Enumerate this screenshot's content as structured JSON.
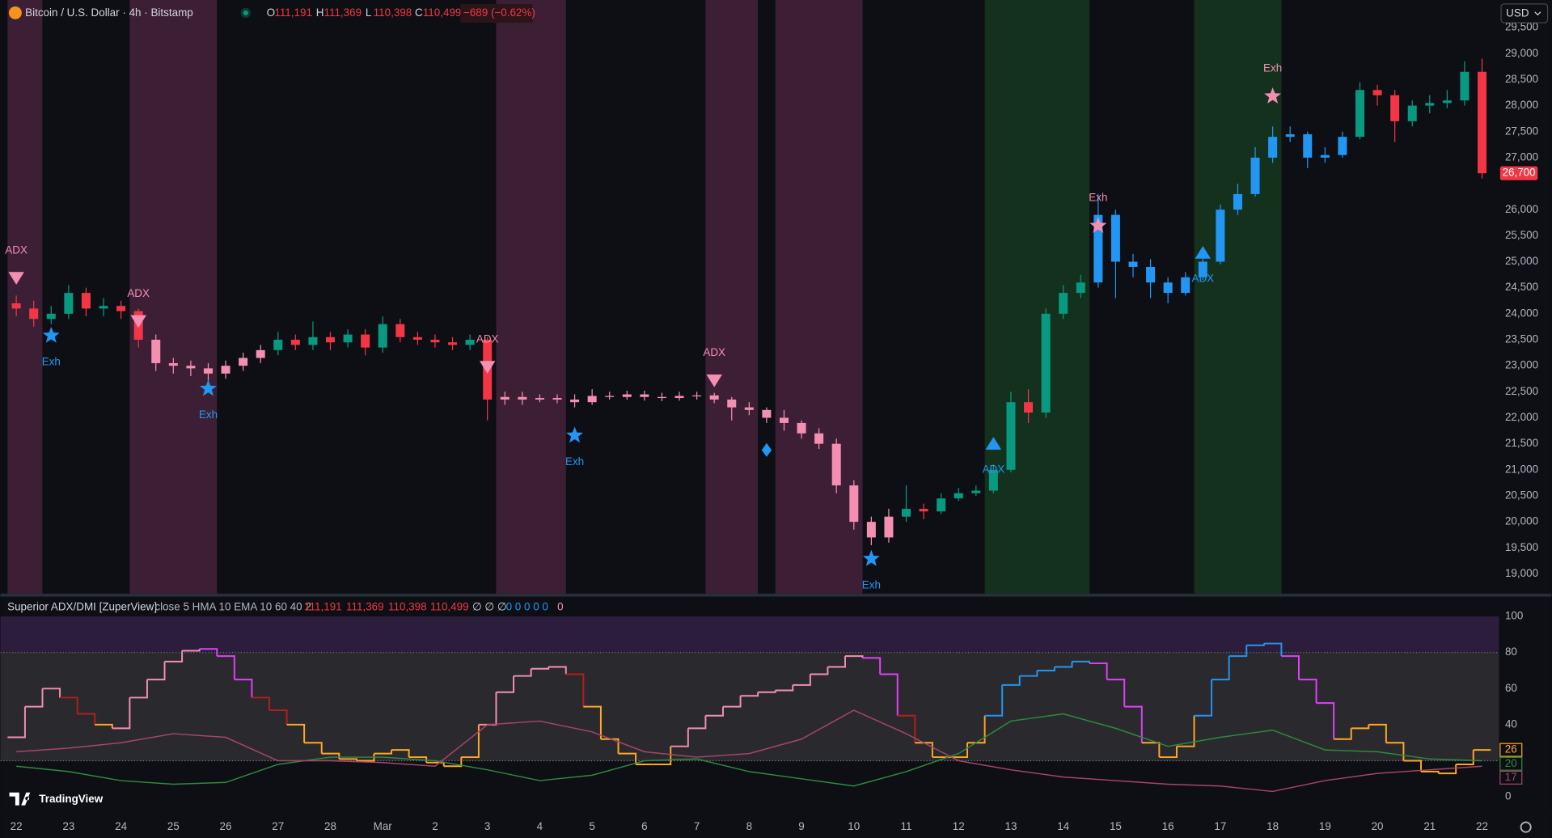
{
  "header": {
    "symbol": "Bitcoin / U.S. Dollar · 4h · Bitstamp",
    "ohlc": [
      {
        "key": "O",
        "value": "111,191"
      },
      {
        "key": "H",
        "value": "111,369"
      },
      {
        "key": "L",
        "value": "110,398"
      },
      {
        "key": "C",
        "value": "110,499"
      }
    ],
    "change": "−689 (−0.62%)",
    "currency": "USD",
    "brand": "TradingView"
  },
  "chart_data": [
    {
      "type": "candlestick",
      "open": [
        24200,
        24100,
        23900,
        24000,
        24400,
        24100,
        24150,
        24050,
        23500,
        23050,
        23000,
        22950,
        22850,
        23000,
        23150,
        23300,
        23500,
        23400,
        23550,
        23450,
        23600,
        23350,
        23800,
        23550,
        23500,
        23450,
        23400,
        23500,
        22350,
        22400,
        22350,
        22380,
        22350,
        22300,
        22420,
        22400,
        22450,
        22400,
        22380,
        22420,
        22430,
        22350,
        22200,
        22150,
        22000,
        21900,
        21700,
        21500,
        20700,
        20000,
        19700,
        20100,
        20250,
        20200,
        20450,
        20550,
        20600,
        21000,
        22300,
        22100,
        24000,
        24400,
        24600,
        25900,
        25000,
        24900,
        24600,
        24400,
        24700,
        25000,
        26000,
        26300,
        27000,
        27400,
        27450,
        27000,
        27050,
        27400,
        28300,
        28200,
        27700,
        28000,
        28050,
        28100,
        28650
      ],
      "high": [
        24350,
        24250,
        24150,
        24550,
        24500,
        24300,
        24250,
        24100,
        23600,
        23150,
        23100,
        23050,
        23100,
        23250,
        23400,
        23650,
        23600,
        23850,
        23650,
        23700,
        23700,
        23950,
        23900,
        23650,
        23600,
        23550,
        23600,
        23550,
        22500,
        22500,
        22450,
        22450,
        22450,
        22550,
        22500,
        22520,
        22520,
        22480,
        22500,
        22500,
        22480,
        22400,
        22300,
        22200,
        22150,
        21950,
        21800,
        21600,
        20800,
        20100,
        20250,
        20700,
        20350,
        20550,
        20650,
        20700,
        21100,
        22500,
        22550,
        24100,
        24550,
        24750,
        26300,
        26000,
        25150,
        25050,
        24700,
        24800,
        25150,
        26100,
        26500,
        27200,
        27600,
        27600,
        27500,
        27200,
        27500,
        28450,
        28400,
        28300,
        28100,
        28200,
        28300,
        28850,
        28900
      ],
      "low": [
        23950,
        23750,
        23800,
        23900,
        23950,
        23950,
        23900,
        23350,
        22900,
        22850,
        22800,
        22700,
        22750,
        22900,
        23050,
        23200,
        23300,
        23300,
        23300,
        23350,
        23200,
        23250,
        23450,
        23400,
        23350,
        23300,
        23300,
        21950,
        22250,
        22250,
        22300,
        22280,
        22200,
        22250,
        22350,
        22350,
        22330,
        22320,
        22330,
        22350,
        22280,
        21950,
        22050,
        21900,
        21750,
        21600,
        21400,
        20550,
        19850,
        19550,
        19600,
        20000,
        20050,
        20150,
        20400,
        20500,
        20550,
        20950,
        21900,
        22000,
        23900,
        24300,
        24500,
        24300,
        24700,
        24300,
        24200,
        24350,
        24650,
        24950,
        25900,
        26250,
        26900,
        27300,
        26800,
        26900,
        27000,
        27350,
        28000,
        27300,
        27600,
        27850,
        27950,
        28000,
        26600
      ],
      "close": [
        24100,
        23900,
        24000,
        24400,
        24100,
        24150,
        24050,
        23500,
        23050,
        23000,
        22950,
        22850,
        23000,
        23150,
        23300,
        23500,
        23400,
        23550,
        23450,
        23600,
        23350,
        23800,
        23550,
        23500,
        23450,
        23400,
        23500,
        22350,
        22400,
        22350,
        22380,
        22350,
        22300,
        22420,
        22400,
        22450,
        22400,
        22380,
        22420,
        22430,
        22350,
        22200,
        22150,
        22000,
        21900,
        21700,
        21500,
        20700,
        20000,
        19700,
        20100,
        20250,
        20200,
        20450,
        20550,
        20600,
        21000,
        22300,
        22100,
        24000,
        24400,
        24600,
        25900,
        25000,
        24900,
        24600,
        24400,
        24700,
        25000,
        26000,
        26300,
        27000,
        27400,
        27450,
        27000,
        27050,
        27400,
        28300,
        28200,
        27700,
        28000,
        28050,
        28100,
        28650,
        26700
      ],
      "last_price_label": "26,700",
      "up_color": "#089981",
      "down_color": "#f23645",
      "bear_color": "#f48fb1",
      "bull_color": "#2196f3",
      "regimes": [
        {
          "from": 8,
          "to": 14,
          "color": "#f48fb1"
        },
        {
          "from": 28,
          "to": 50,
          "color": "#f48fb1"
        },
        {
          "from": 62,
          "to": 76,
          "color": "#2196f3"
        }
      ],
      "bands": [
        {
          "from": 0,
          "to": 1,
          "color": "#3d1f35"
        },
        {
          "from": 7,
          "to": 11,
          "color": "#3d1f35"
        },
        {
          "from": 28,
          "to": 31,
          "color": "#3d1f35"
        },
        {
          "from": 40,
          "to": 42,
          "color": "#3d1f35"
        },
        {
          "from": 44,
          "to": 48,
          "color": "#3d1f35"
        },
        {
          "from": 56,
          "to": 61,
          "color": "#14311d"
        },
        {
          "from": 68,
          "to": 72,
          "color": "#14311d"
        }
      ],
      "markers": [
        {
          "index": 0,
          "price": 24680,
          "shape": "triangle-down",
          "color": "#f48fb1",
          "label": "ADX"
        },
        {
          "index": 2,
          "price": 23580,
          "shape": "star",
          "color": "#2196f3",
          "label": "Exh"
        },
        {
          "index": 7,
          "price": 23850,
          "shape": "triangle-down",
          "color": "#f48fb1",
          "label": "ADX"
        },
        {
          "index": 11,
          "price": 22560,
          "shape": "star",
          "color": "#2196f3",
          "label": "Exh"
        },
        {
          "index": 27,
          "price": 22970,
          "shape": "triangle-down",
          "color": "#f48fb1",
          "label": "ADX"
        },
        {
          "index": 32,
          "price": 21660,
          "shape": "star",
          "color": "#2196f3",
          "label": "Exh"
        },
        {
          "index": 40,
          "price": 22710,
          "shape": "triangle-down",
          "color": "#f48fb1",
          "label": "ADX"
        },
        {
          "index": 43,
          "price": 21380,
          "shape": "diamond",
          "color": "#2196f3"
        },
        {
          "index": 49,
          "price": 19290,
          "shape": "star",
          "color": "#2196f3",
          "label": "Exh"
        },
        {
          "index": 56,
          "price": 21510,
          "shape": "triangle-up",
          "color": "#2196f3",
          "label": "ADX"
        },
        {
          "index": 62,
          "price": 25690,
          "shape": "star",
          "color": "#f48fb1",
          "label": "Exh"
        },
        {
          "index": 68,
          "price": 25180,
          "shape": "triangle-up",
          "color": "#2196f3",
          "label": "ADX"
        },
        {
          "index": 72,
          "price": 28180,
          "shape": "star",
          "color": "#f48fb1",
          "label": "Exh"
        }
      ],
      "ylim": [
        18620,
        30030
      ],
      "yticks": [
        {
          "value": 19000,
          "label": "19,000"
        },
        {
          "value": 19500,
          "label": "19,500"
        },
        {
          "value": 20000,
          "label": "20,000"
        },
        {
          "value": 20500,
          "label": "20,500"
        },
        {
          "value": 21000,
          "label": "21,000"
        },
        {
          "value": 21500,
          "label": "21,500"
        },
        {
          "value": 22000,
          "label": "22,000"
        },
        {
          "value": 22500,
          "label": "22,500"
        },
        {
          "value": 23000,
          "label": "23,000"
        },
        {
          "value": 23500,
          "label": "23,500"
        },
        {
          "value": 24000,
          "label": "24,000"
        },
        {
          "value": 24500,
          "label": "24,500"
        },
        {
          "value": 25000,
          "label": "25,000"
        },
        {
          "value": 25500,
          "label": "25,500"
        },
        {
          "value": 26000,
          "label": "26,000"
        },
        {
          "value": 27000,
          "label": "27,000"
        },
        {
          "value": 27500,
          "label": "27,500"
        },
        {
          "value": 28000,
          "label": "28,000"
        },
        {
          "value": 28500,
          "label": "28,500"
        },
        {
          "value": 29000,
          "label": "29,000"
        },
        {
          "value": 29500,
          "label": "29,500"
        }
      ],
      "xticks": [
        {
          "value": 0,
          "label": "22"
        },
        {
          "value": 3,
          "label": "23"
        },
        {
          "value": 6,
          "label": "24"
        },
        {
          "value": 9,
          "label": "25"
        },
        {
          "value": 12,
          "label": "26"
        },
        {
          "value": 15,
          "label": "27"
        },
        {
          "value": 18,
          "label": "28"
        },
        {
          "value": 21,
          "label": "Mar"
        },
        {
          "value": 24,
          "label": "2"
        },
        {
          "value": 27,
          "label": "3"
        },
        {
          "value": 30,
          "label": "4"
        },
        {
          "value": 33,
          "label": "5"
        },
        {
          "value": 36,
          "label": "6"
        },
        {
          "value": 39,
          "label": "7"
        },
        {
          "value": 42,
          "label": "8"
        },
        {
          "value": 45,
          "label": "9"
        },
        {
          "value": 48,
          "label": "10"
        },
        {
          "value": 51,
          "label": "11"
        },
        {
          "value": 54,
          "label": "12"
        },
        {
          "value": 57,
          "label": "13"
        },
        {
          "value": 60,
          "label": "14"
        },
        {
          "value": 63,
          "label": "15"
        },
        {
          "value": 66,
          "label": "16"
        },
        {
          "value": 69,
          "label": "17"
        },
        {
          "value": 72,
          "label": "18"
        },
        {
          "value": 75,
          "label": "19"
        },
        {
          "value": 78,
          "label": "20"
        },
        {
          "value": 81,
          "label": "21"
        },
        {
          "value": 84,
          "label": "22"
        }
      ],
      "grid": false
    },
    {
      "type": "line",
      "title": "Superior ADX/DMI [ZuperView]",
      "params": "close 5 HMA 10 EMA 10 60 40 2",
      "legend_values": [
        "111,191",
        "111,369",
        "110,398",
        "110,499"
      ],
      "legend_flags": "∅ ∅ ∅",
      "legend_zeros": "0 0 0 0 0",
      "legend_last": "0",
      "series": [
        {
          "step": true,
          "color": "#ffa726",
          "values": [
            33,
            50,
            60,
            55,
            46,
            40,
            38,
            55,
            65,
            75,
            81,
            82,
            78,
            65,
            55,
            48,
            40,
            30,
            24,
            21,
            20,
            24,
            26,
            22,
            19,
            17,
            22,
            40,
            58,
            67,
            71,
            72,
            68,
            50,
            32,
            24,
            18,
            18,
            28,
            38,
            45,
            50,
            56,
            58,
            59,
            62,
            68,
            72,
            78,
            77,
            68,
            45,
            30,
            22,
            22,
            30,
            45,
            62,
            67,
            70,
            72,
            75,
            74,
            65,
            50,
            30,
            22,
            28,
            45,
            65,
            78,
            84,
            85,
            78,
            65,
            52,
            32,
            38,
            40,
            30,
            20,
            14,
            13,
            18,
            26
          ],
          "color_runs": [
            {
              "from": 0,
              "to": 2,
              "color": "#f48fb1"
            },
            {
              "from": 3,
              "to": 4,
              "color": "#b71c1c"
            },
            {
              "from": 5,
              "to": 5,
              "color": "#ffa726"
            },
            {
              "from": 6,
              "to": 10,
              "color": "#f48fb1"
            },
            {
              "from": 11,
              "to": 13,
              "color": "#e040fb"
            },
            {
              "from": 14,
              "to": 15,
              "color": "#b71c1c"
            },
            {
              "from": 16,
              "to": 26,
              "color": "#ffa726"
            },
            {
              "from": 27,
              "to": 31,
              "color": "#f48fb1"
            },
            {
              "from": 32,
              "to": 32,
              "color": "#b71c1c"
            },
            {
              "from": 33,
              "to": 37,
              "color": "#ffa726"
            },
            {
              "from": 38,
              "to": 48,
              "color": "#f48fb1"
            },
            {
              "from": 49,
              "to": 50,
              "color": "#e040fb"
            },
            {
              "from": 51,
              "to": 51,
              "color": "#b71c1c"
            },
            {
              "from": 52,
              "to": 55,
              "color": "#ffa726"
            },
            {
              "from": 56,
              "to": 61,
              "color": "#2196f3"
            },
            {
              "from": 62,
              "to": 64,
              "color": "#e040fb"
            },
            {
              "from": 65,
              "to": 67,
              "color": "#ffa726"
            },
            {
              "from": 68,
              "to": 72,
              "color": "#2196f3"
            },
            {
              "from": 73,
              "to": 75,
              "color": "#e040fb"
            },
            {
              "from": 76,
              "to": 84,
              "color": "#ffa726"
            }
          ]
        },
        {
          "color": "#2e8b3e",
          "x": [
            0,
            3,
            6,
            9,
            12,
            15,
            18,
            21,
            24,
            27,
            30,
            33,
            36,
            39,
            42,
            45,
            48,
            51,
            54,
            57,
            60,
            63,
            66,
            69,
            72,
            75,
            78,
            81,
            84
          ],
          "values": [
            17,
            14,
            9,
            7,
            8,
            18,
            22,
            22,
            20,
            15,
            9,
            12,
            20,
            21,
            14,
            10,
            6,
            14,
            24,
            42,
            46,
            38,
            28,
            33,
            37,
            26,
            25,
            21,
            20
          ]
        },
        {
          "color": "#a8456b",
          "x": [
            0,
            3,
            6,
            9,
            12,
            15,
            18,
            21,
            24,
            27,
            30,
            33,
            36,
            39,
            42,
            45,
            48,
            51,
            54,
            57,
            60,
            63,
            66,
            69,
            72,
            75,
            78,
            81,
            84
          ],
          "values": [
            25,
            27,
            30,
            35,
            33,
            20,
            20,
            19,
            17,
            40,
            42,
            36,
            25,
            22,
            24,
            32,
            48,
            35,
            20,
            15,
            11,
            9,
            7,
            6,
            3,
            9,
            13,
            15,
            17
          ]
        }
      ],
      "levels": [
        20,
        80
      ],
      "zones": [
        {
          "from": 80,
          "to": 100,
          "color": "#2b1d3b"
        },
        {
          "from": 20,
          "to": 80,
          "color": "#2a2a2e"
        }
      ],
      "ylim": [
        -8,
        111
      ],
      "yticks": [
        0,
        20,
        40,
        60,
        80,
        100
      ],
      "grid": false
    }
  ]
}
